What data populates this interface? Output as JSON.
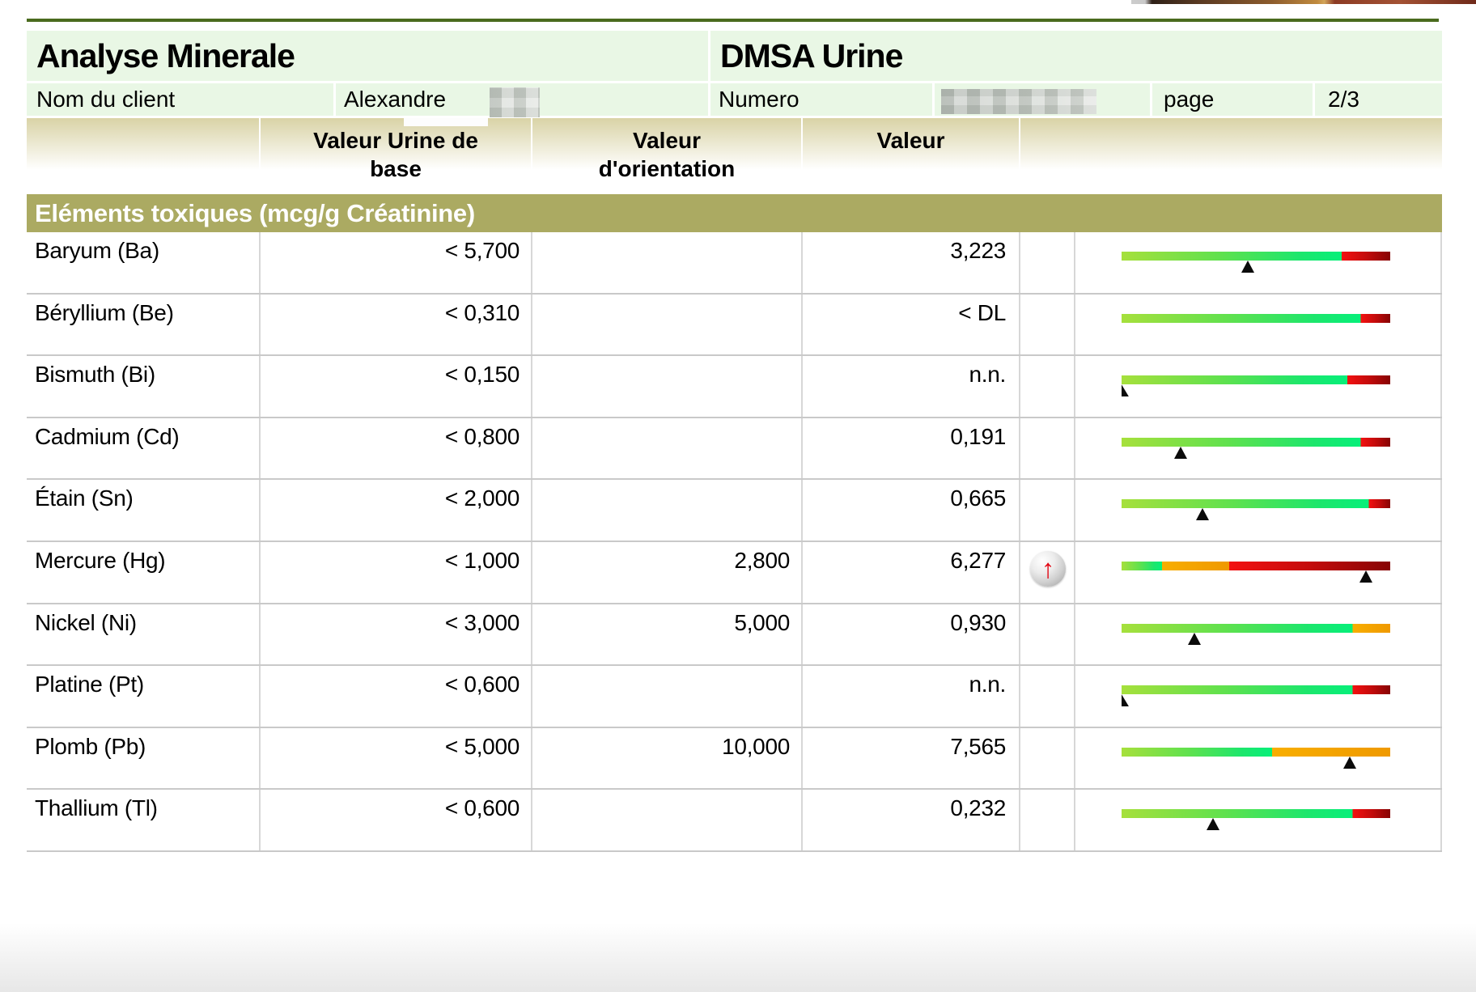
{
  "report": {
    "title_left": "Analyse Minerale",
    "title_right": "DMSA Urine",
    "client_label": "Nom du client",
    "client_first_name": "Alexandre",
    "numero_label": "Numero",
    "page_label": "page",
    "page_number": "2/3"
  },
  "table": {
    "headers": {
      "element": "",
      "base": "Valeur Urine de base",
      "orientation": "Valeur d'orientation",
      "value": "Valeur"
    },
    "section_title": "Eléments toxiques (mcg/g Créatinine)",
    "rows": [
      {
        "element": "Baryum (Ba)",
        "base": "< 5,700",
        "orientation": "",
        "value": "3,223",
        "flag": "",
        "bar": {
          "segments": [
            {
              "c": "green",
              "to": 82
            },
            {
              "c": "red",
              "to": 100
            }
          ],
          "marker_pct": 47,
          "marker_clipped": false
        }
      },
      {
        "element": "Béryllium (Be)",
        "base": "< 0,310",
        "orientation": "",
        "value": "< DL",
        "flag": "",
        "bar": {
          "segments": [
            {
              "c": "green",
              "to": 89
            },
            {
              "c": "red",
              "to": 100
            }
          ],
          "marker_pct": null,
          "marker_clipped": false
        }
      },
      {
        "element": "Bismuth (Bi)",
        "base": "< 0,150",
        "orientation": "",
        "value": "n.n.",
        "flag": "",
        "bar": {
          "segments": [
            {
              "c": "green",
              "to": 84
            },
            {
              "c": "red",
              "to": 100
            }
          ],
          "marker_pct": 0,
          "marker_clipped": true
        }
      },
      {
        "element": "Cadmium (Cd)",
        "base": "< 0,800",
        "orientation": "",
        "value": "0,191",
        "flag": "",
        "bar": {
          "segments": [
            {
              "c": "green",
              "to": 89
            },
            {
              "c": "red",
              "to": 100
            }
          ],
          "marker_pct": 22,
          "marker_clipped": false
        }
      },
      {
        "element": "Étain (Sn)",
        "base": "< 2,000",
        "orientation": "",
        "value": "0,665",
        "flag": "",
        "bar": {
          "segments": [
            {
              "c": "green",
              "to": 92
            },
            {
              "c": "red",
              "to": 100
            }
          ],
          "marker_pct": 30,
          "marker_clipped": false
        }
      },
      {
        "element": "Mercure (Hg)",
        "base": "< 1,000",
        "orientation": "2,800",
        "value": "6,277",
        "flag": "elevated",
        "bar": {
          "segments": [
            {
              "c": "green",
              "to": 15
            },
            {
              "c": "orange",
              "to": 40
            },
            {
              "c": "red",
              "to": 100
            }
          ],
          "marker_pct": 91,
          "marker_clipped": false
        }
      },
      {
        "element": "Nickel (Ni)",
        "base": "< 3,000",
        "orientation": "5,000",
        "value": "0,930",
        "flag": "",
        "bar": {
          "segments": [
            {
              "c": "green",
              "to": 86
            },
            {
              "c": "orange",
              "to": 100
            }
          ],
          "marker_pct": 27,
          "marker_clipped": false
        }
      },
      {
        "element": "Platine (Pt)",
        "base": "< 0,600",
        "orientation": "",
        "value": "n.n.",
        "flag": "",
        "bar": {
          "segments": [
            {
              "c": "green",
              "to": 86
            },
            {
              "c": "red",
              "to": 100
            }
          ],
          "marker_pct": 0,
          "marker_clipped": true
        }
      },
      {
        "element": "Plomb (Pb)",
        "base": "< 5,000",
        "orientation": "10,000",
        "value": "7,565",
        "flag": "",
        "bar": {
          "segments": [
            {
              "c": "green",
              "to": 56
            },
            {
              "c": "orange",
              "to": 100
            }
          ],
          "marker_pct": 85,
          "marker_clipped": false
        }
      },
      {
        "element": "Thallium (Tl)",
        "base": "< 0,600",
        "orientation": "",
        "value": "0,232",
        "flag": "",
        "bar": {
          "segments": [
            {
              "c": "green",
              "to": 86
            },
            {
              "c": "red",
              "to": 100
            }
          ],
          "marker_pct": 34,
          "marker_clipped": false
        }
      }
    ]
  },
  "icons": {
    "elevated_arrow": "↑"
  },
  "colors": {
    "olive_band": "#abaa62",
    "header_green_bg": "#e9f7e5",
    "rule_green": "#4a6b1e",
    "bar_green_1": "#a6e03c",
    "bar_green_2": "#5fe14e",
    "bar_green_3": "#1de66c",
    "bar_green_4": "#07ef7a",
    "bar_orange_1": "#f8ae00",
    "bar_orange_2": "#ef9900",
    "bar_red_1": "#f31111",
    "bar_red_2": "#c40b0b",
    "bar_red_3": "#870404",
    "flag_red": "#e30613",
    "marker_black": "#0b0b0b"
  }
}
